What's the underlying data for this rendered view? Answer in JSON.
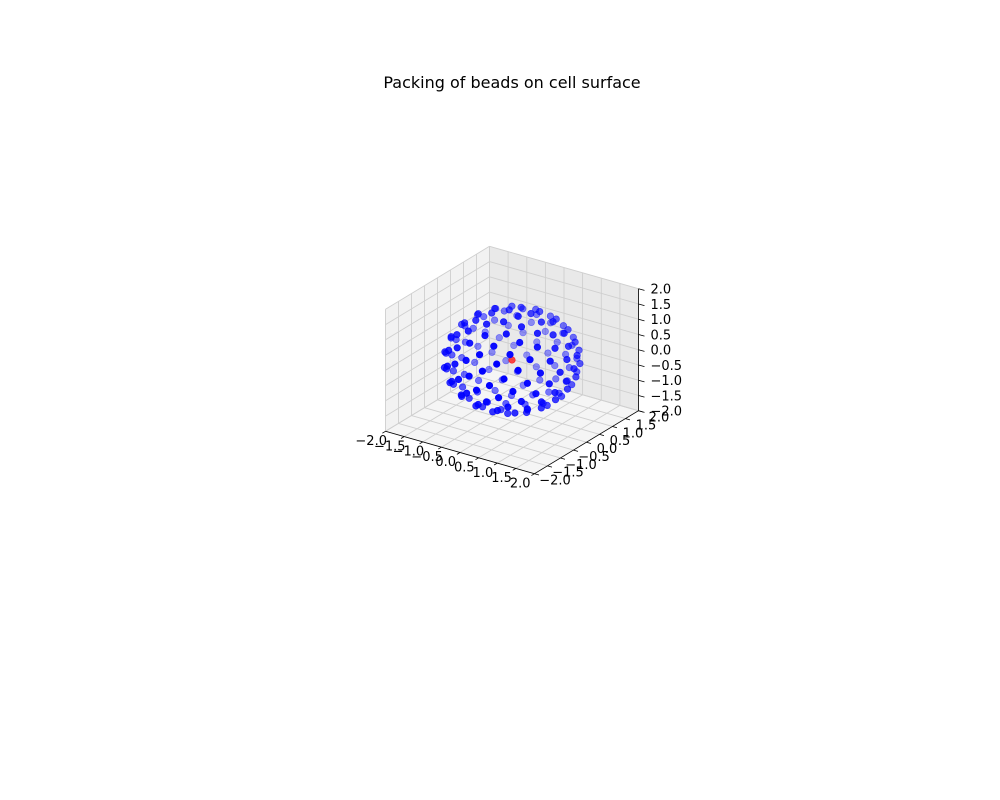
{
  "chart_data": {
    "type": "scatter",
    "projection": "3d",
    "title": "Packing of beads on cell surface",
    "xlabel": "",
    "ylabel": "",
    "zlabel": "",
    "xlim": [
      -2.0,
      2.0
    ],
    "ylim": [
      -2.0,
      2.0
    ],
    "zlim": [
      -2.0,
      2.0
    ],
    "x_ticks": [
      "−2.0",
      "−1.5",
      "−1.0",
      "−0.5",
      "0.0",
      "0.5",
      "1.0",
      "1.5",
      "2.0"
    ],
    "y_ticks": [
      "−2.0",
      "−1.5",
      "−1.0",
      "−0.5",
      "0.0",
      "0.5",
      "1.0",
      "1.5",
      "2.0"
    ],
    "z_ticks": [
      "−2.0",
      "−1.5",
      "−1.0",
      "−0.5",
      "0.0",
      "0.5",
      "1.0",
      "1.5",
      "2.0"
    ],
    "grid": true,
    "surface": {
      "shape": "sphere",
      "radius": 1.5,
      "bead_count": 162,
      "color": "#0000ff"
    },
    "center_point": {
      "x": 0.0,
      "y": 0.0,
      "z": 0.0,
      "color": "#ff0000"
    },
    "colors": {
      "pane_left": "#f2f2f2",
      "pane_right": "#e9e9e9",
      "pane_floor": "#f5f5f5",
      "grid": "#cfcfcf",
      "bead": "#0000ff",
      "center": "#ff0000"
    }
  }
}
